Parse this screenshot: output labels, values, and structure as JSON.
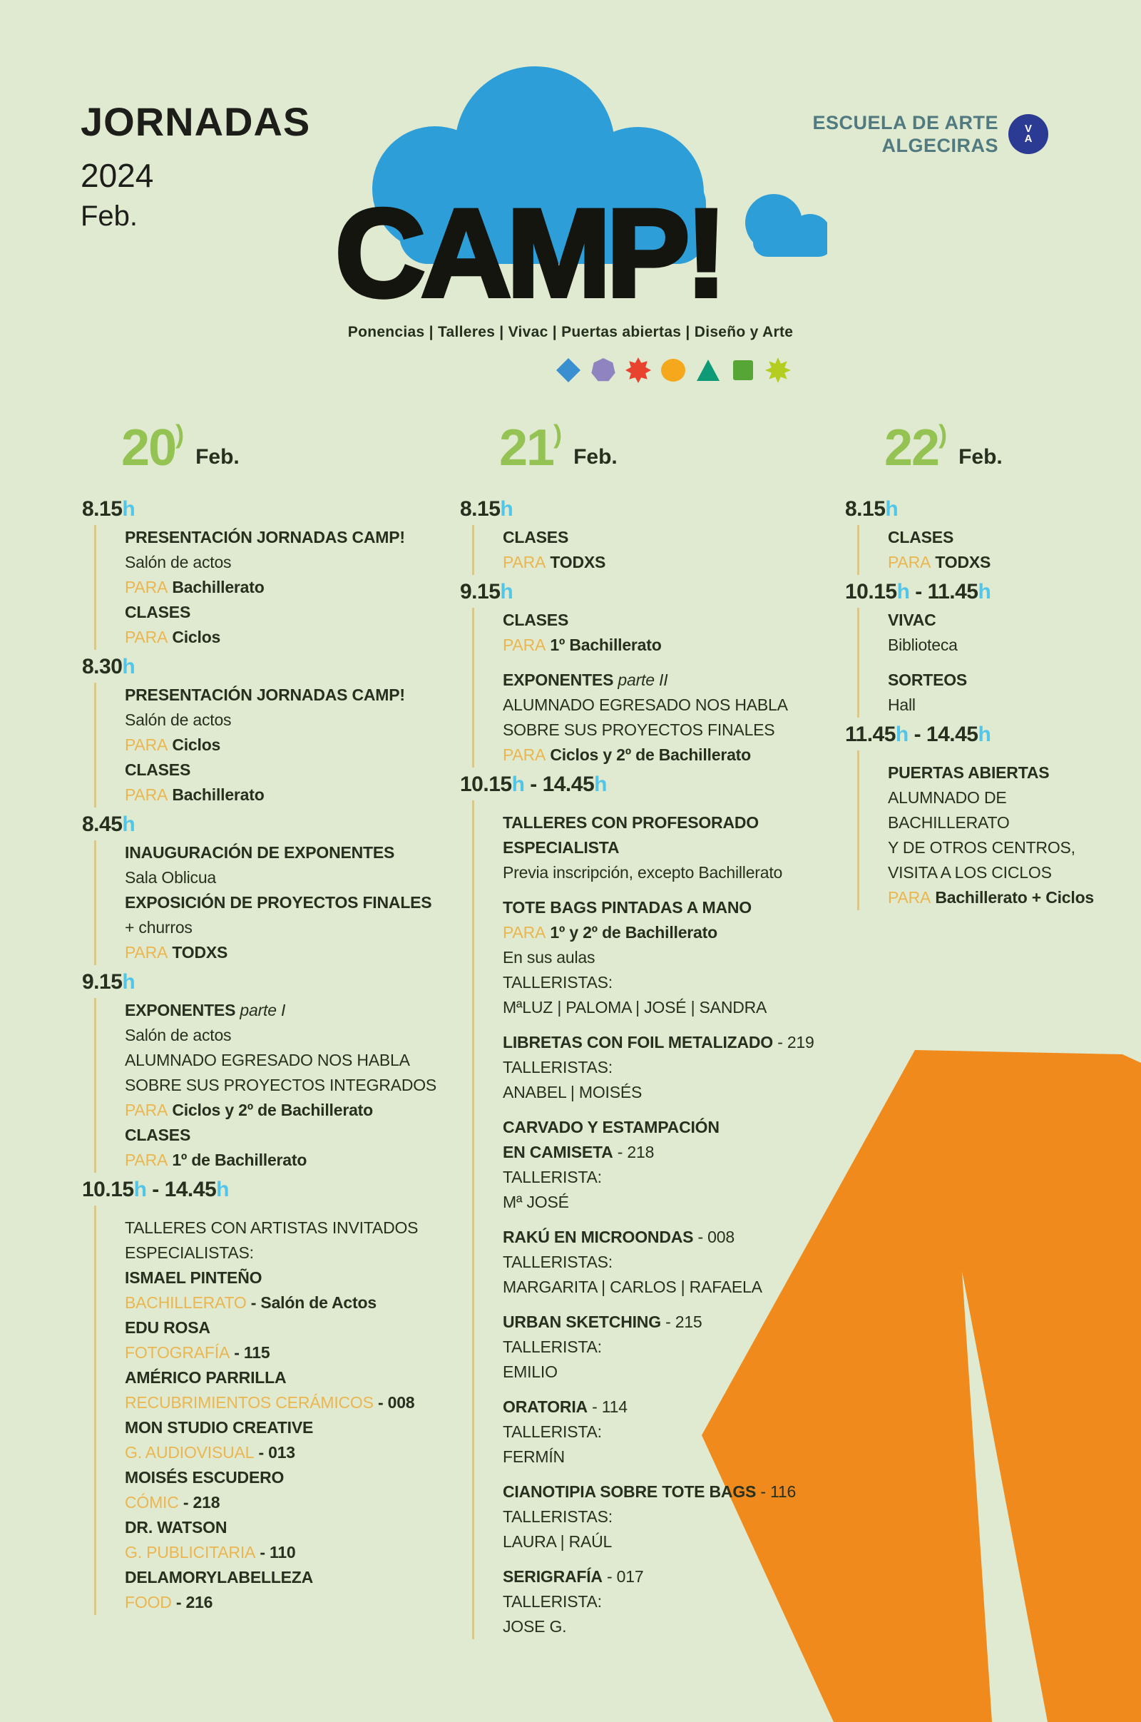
{
  "colors": {
    "background": "#e0ead0",
    "ink": "#25301f",
    "accent_cyan": "#52c6e8",
    "accent_yellow": "#eab651",
    "accent_green": "#95c353",
    "cloud_blue": "#2d9ed8",
    "orange": "#f08a1c",
    "school_circle_blue": "#2b3a92",
    "school_text": "#517a80",
    "timeline_line": "#d8c88b"
  },
  "header": {
    "title": "JORNADAS",
    "year": "2024",
    "month": "Feb."
  },
  "school": {
    "line1": "ESCUELA DE ARTE",
    "line2": "ALGECIRAS",
    "logo_letters": [
      "V",
      "A"
    ]
  },
  "logo": {
    "wordmark": "CAMP!",
    "subtitle": "Ponencias | Talleres | Vivac | Puertas abiertas | Diseño y Arte"
  },
  "decor_shapes": [
    {
      "name": "diamond",
      "color": "#3a8fd0"
    },
    {
      "name": "heptagon",
      "color": "#8f83c0"
    },
    {
      "name": "sun",
      "color": "#e8432e"
    },
    {
      "name": "circle",
      "color": "#f5a81c"
    },
    {
      "name": "triangle",
      "color": "#0f9a77"
    },
    {
      "name": "square",
      "color": "#56a636"
    },
    {
      "name": "star",
      "color": "#b5cd20"
    }
  ],
  "columns": [
    {
      "day": "20",
      "paren": ")",
      "month": "Feb.",
      "blocks": [
        {
          "time": "8.15h",
          "entries": [
            {
              "style": "title",
              "text": "PRESENTACIÓN JORNADAS CAMP!"
            },
            {
              "style": "plain",
              "text": "Salón de actos"
            },
            {
              "style": "para",
              "prefix": "PARA",
              "rest": "Bachillerato"
            },
            {
              "style": "title",
              "text": "CLASES"
            },
            {
              "style": "para",
              "prefix": "PARA",
              "rest": "Ciclos"
            }
          ]
        },
        {
          "time": "8.30h",
          "entries": [
            {
              "style": "title",
              "text": "PRESENTACIÓN JORNADAS CAMP!"
            },
            {
              "style": "plain",
              "text": "Salón de actos"
            },
            {
              "style": "para",
              "prefix": "PARA",
              "rest": "Ciclos"
            },
            {
              "style": "title",
              "text": "CLASES"
            },
            {
              "style": "para",
              "prefix": "PARA",
              "rest": "Bachillerato"
            }
          ]
        },
        {
          "time": "8.45h",
          "entries": [
            {
              "style": "title",
              "text": "INAUGURACIÓN DE EXPONENTES"
            },
            {
              "style": "plain",
              "text": "Sala Oblicua"
            },
            {
              "style": "title",
              "text": "EXPOSICIÓN DE PROYECTOS  FINALES"
            },
            {
              "style": "plain",
              "text": "+ churros"
            },
            {
              "style": "para",
              "prefix": "PARA",
              "rest": "TODXS"
            }
          ]
        },
        {
          "time": "9.15h",
          "entries": [
            {
              "style": "titlei",
              "text": "EXPONENTES",
              "italic": "parte I"
            },
            {
              "style": "plain",
              "text": "Salón de actos"
            },
            {
              "style": "plain",
              "text": "ALUMNADO EGRESADO NOS HABLA"
            },
            {
              "style": "plain",
              "text": "SOBRE SUS PROYECTOS INTEGRADOS"
            },
            {
              "style": "para",
              "prefix": "PARA",
              "rest": "Ciclos y 2º de Bachillerato"
            },
            {
              "style": "title",
              "text": "CLASES"
            },
            {
              "style": "para",
              "prefix": "PARA",
              "rest": "1º de Bachillerato"
            }
          ]
        },
        {
          "time": "10.15h - 14.45h",
          "entries": [
            {
              "style": "gap"
            },
            {
              "style": "plain",
              "text": "TALLERES CON ARTISTAS INVITADOS"
            },
            {
              "style": "plain",
              "text": "ESPECIALISTAS:"
            },
            {
              "style": "title",
              "text": "ISMAEL PINTEÑO"
            },
            {
              "style": "label",
              "text": "BACHILLERATO",
              "rest": "- Salón de Actos"
            },
            {
              "style": "title",
              "text": "EDU ROSA"
            },
            {
              "style": "label",
              "text": "FOTOGRAFÍA",
              "rest": "- 115"
            },
            {
              "style": "title",
              "text": "AMÉRICO PARRILLA"
            },
            {
              "style": "label",
              "text": "RECUBRIMIENTOS CERÁMICOS",
              "rest": "- 008"
            },
            {
              "style": "title",
              "text": "MON STUDIO CREATIVE"
            },
            {
              "style": "label",
              "text": "G. AUDIOVISUAL",
              "rest": "- 013"
            },
            {
              "style": "title",
              "text": "MOISÉS ESCUDERO"
            },
            {
              "style": "label",
              "text": "CÓMIC",
              "rest": "- 218"
            },
            {
              "style": "title",
              "text": "DR. WATSON"
            },
            {
              "style": "label",
              "text": "G. PUBLICITARIA",
              "rest": "- 110"
            },
            {
              "style": "title",
              "text": "DELAMORYLABELLEZA"
            },
            {
              "style": "label",
              "text": "FOOD",
              "rest": "- 216"
            }
          ]
        }
      ]
    },
    {
      "day": "21",
      "paren": ")",
      "month": "Feb.",
      "blocks": [
        {
          "time": "8.15h",
          "entries": [
            {
              "style": "title",
              "text": "CLASES"
            },
            {
              "style": "para",
              "prefix": "PARA",
              "rest": "TODXS"
            }
          ]
        },
        {
          "time": "9.15h",
          "entries": [
            {
              "style": "title",
              "text": "CLASES"
            },
            {
              "style": "para",
              "prefix": "PARA",
              "rest": "1º Bachillerato"
            },
            {
              "style": "gap"
            },
            {
              "style": "titlei",
              "text": "EXPONENTES",
              "italic": "parte II"
            },
            {
              "style": "plain",
              "text": "ALUMNADO EGRESADO NOS HABLA"
            },
            {
              "style": "plain",
              "text": "SOBRE SUS PROYECTOS FINALES"
            },
            {
              "style": "para",
              "prefix": "PARA",
              "rest": "Ciclos y 2º de Bachillerato"
            }
          ]
        },
        {
          "time": "10.15h - 14.45h",
          "entries": [
            {
              "style": "gap"
            },
            {
              "style": "title",
              "text": "TALLERES CON PROFESORADO"
            },
            {
              "style": "title",
              "text": "ESPECIALISTA"
            },
            {
              "style": "plain",
              "text": "Previa inscripción, excepto Bachillerato"
            },
            {
              "style": "gap"
            },
            {
              "style": "title",
              "text": "TOTE BAGS PINTADAS A MANO"
            },
            {
              "style": "para",
              "prefix": "PARA",
              "rest": "1º y 2º de Bachillerato"
            },
            {
              "style": "plain",
              "text": "En sus aulas"
            },
            {
              "style": "plain",
              "text": "TALLERISTAS:"
            },
            {
              "style": "names",
              "text": "MªLUZ | PALOMA | JOSÉ | SANDRA"
            },
            {
              "style": "gap"
            },
            {
              "style": "titlenum",
              "text": "LIBRETAS CON FOIL METALIZADO",
              "rest": "- 219"
            },
            {
              "style": "plain",
              "text": "TALLERISTAS:"
            },
            {
              "style": "names",
              "text": "ANABEL | MOISÉS"
            },
            {
              "style": "gap"
            },
            {
              "style": "title",
              "text": "CARVADO Y ESTAMPACIÓN"
            },
            {
              "style": "titlenum",
              "text": "EN CAMISETA",
              "rest": "- 218"
            },
            {
              "style": "plain",
              "text": "TALLERISTA:"
            },
            {
              "style": "names",
              "text": "Mª JOSÉ"
            },
            {
              "style": "gap"
            },
            {
              "style": "titlenum",
              "text": "RAKÚ EN MICROONDAS",
              "rest": "- 008"
            },
            {
              "style": "plain",
              "text": "TALLERISTAS:"
            },
            {
              "style": "names",
              "text": "MARGARITA | CARLOS | RAFAELA"
            },
            {
              "style": "gap"
            },
            {
              "style": "titlenum",
              "text": "URBAN SKETCHING",
              "rest": "- 215"
            },
            {
              "style": "plain",
              "text": "TALLERISTA:"
            },
            {
              "style": "names",
              "text": "EMILIO"
            },
            {
              "style": "gap"
            },
            {
              "style": "titlenum",
              "text": "ORATORIA",
              "rest": "- 114"
            },
            {
              "style": "plain",
              "text": "TALLERISTA:"
            },
            {
              "style": "names",
              "text": "FERMÍN"
            },
            {
              "style": "gap"
            },
            {
              "style": "titlenum",
              "text": "CIANOTIPIA SOBRE TOTE BAGS",
              "rest": "- 116"
            },
            {
              "style": "plain",
              "text": "TALLERISTAS:"
            },
            {
              "style": "names",
              "text": "LAURA | RAÚL"
            },
            {
              "style": "gap"
            },
            {
              "style": "titlenum",
              "text": "SERIGRAFÍA",
              "rest": "- 017"
            },
            {
              "style": "plain",
              "text": "TALLERISTA:"
            },
            {
              "style": "names",
              "text": "JOSE G."
            }
          ]
        }
      ]
    },
    {
      "day": "22",
      "paren": ")",
      "month": "Feb.",
      "blocks": [
        {
          "time": "8.15h",
          "entries": [
            {
              "style": "title",
              "text": "CLASES"
            },
            {
              "style": "para",
              "prefix": "PARA",
              "rest": "TODXS"
            }
          ]
        },
        {
          "time": "10.15h - 11.45h",
          "entries": [
            {
              "style": "title",
              "text": "VIVAC"
            },
            {
              "style": "plain",
              "text": "Biblioteca"
            },
            {
              "style": "gap"
            },
            {
              "style": "title",
              "text": "SORTEOS"
            },
            {
              "style": "plain",
              "text": "Hall"
            }
          ]
        },
        {
          "time": "11.45h - 14.45h",
          "entries": [
            {
              "style": "gap"
            },
            {
              "style": "title",
              "text": "PUERTAS ABIERTAS"
            },
            {
              "style": "plain",
              "text": "ALUMNADO DE BACHILLERATO"
            },
            {
              "style": "plain",
              "text": "Y DE OTROS CENTROS,"
            },
            {
              "style": "plain",
              "text": "VISITA A LOS CICLOS"
            },
            {
              "style": "para",
              "prefix": "PARA",
              "rest": "Bachillerato + Ciclos"
            }
          ]
        }
      ]
    }
  ]
}
